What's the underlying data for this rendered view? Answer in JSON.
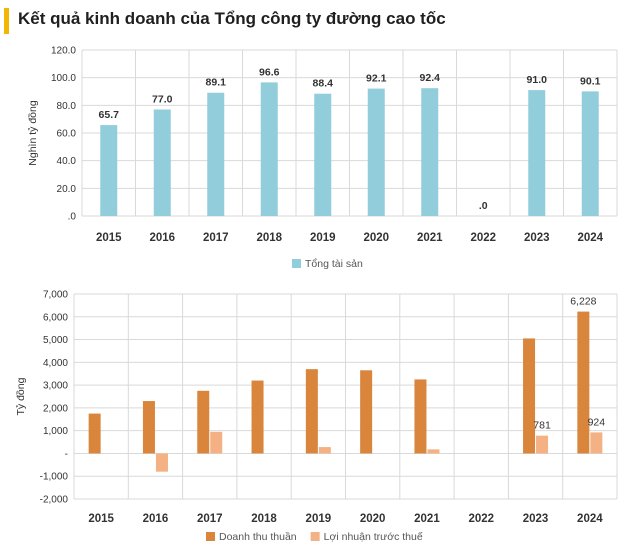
{
  "header": {
    "title": "Kết quả kinh doanh của Tổng công ty đường cao tốc",
    "accent": "#f2b705"
  },
  "chart_data": [
    {
      "type": "bar",
      "categories": [
        "2015",
        "2016",
        "2017",
        "2018",
        "2019",
        "2020",
        "2021",
        "2022",
        "2023",
        "2024"
      ],
      "series": [
        {
          "name": "Tổng tài sản",
          "color": "#92cddc",
          "values": [
            65.7,
            77.0,
            89.1,
            96.6,
            88.4,
            92.1,
            92.4,
            0,
            91.0,
            90.1
          ],
          "labels": [
            "65.7",
            "77.0",
            "89.1",
            "96.6",
            "88.4",
            "92.1",
            "92.4",
            ".0",
            "91.0",
            "90.1"
          ]
        }
      ],
      "ylabel": "Nghìn tỷ đồng",
      "ylim": [
        0,
        120
      ],
      "yticks": [
        0,
        20,
        40,
        60,
        80,
        100,
        120
      ],
      "ytick_labels": [
        ".0",
        "20.0",
        "40.0",
        "60.0",
        "80.0",
        "100.0",
        "120.0"
      ],
      "grid": true,
      "legend": "bottom"
    },
    {
      "type": "bar",
      "categories": [
        "2015",
        "2016",
        "2017",
        "2018",
        "2019",
        "2020",
        "2021",
        "2022",
        "2023",
        "2024"
      ],
      "series": [
        {
          "name": "Doanh thu thuần",
          "color": "#d9853b",
          "values": [
            1750,
            2300,
            2750,
            3200,
            3700,
            3650,
            3250,
            0,
            5050,
            6228
          ],
          "labels": [
            "",
            "",
            "",
            "",
            "",
            "",
            "",
            "",
            "",
            "6,228"
          ]
        },
        {
          "name": "Lợi nhuận trước thuế",
          "color": "#f4b183",
          "values": [
            0,
            -800,
            950,
            0,
            280,
            0,
            180,
            0,
            781,
            924
          ],
          "labels": [
            "",
            "",
            "",
            "",
            "",
            "",
            "",
            "",
            "781",
            "924"
          ]
        }
      ],
      "ylabel": "Tỷ đồng",
      "ylim": [
        -2000,
        7000
      ],
      "yticks": [
        -2000,
        -1000,
        0,
        1000,
        2000,
        3000,
        4000,
        5000,
        6000,
        7000
      ],
      "ytick_labels": [
        "-2,000",
        "-1,000",
        "-",
        "1,000",
        "2,000",
        "3,000",
        "4,000",
        "5,000",
        "6,000",
        "7,000"
      ],
      "grid": true,
      "legend": "bottom"
    }
  ]
}
